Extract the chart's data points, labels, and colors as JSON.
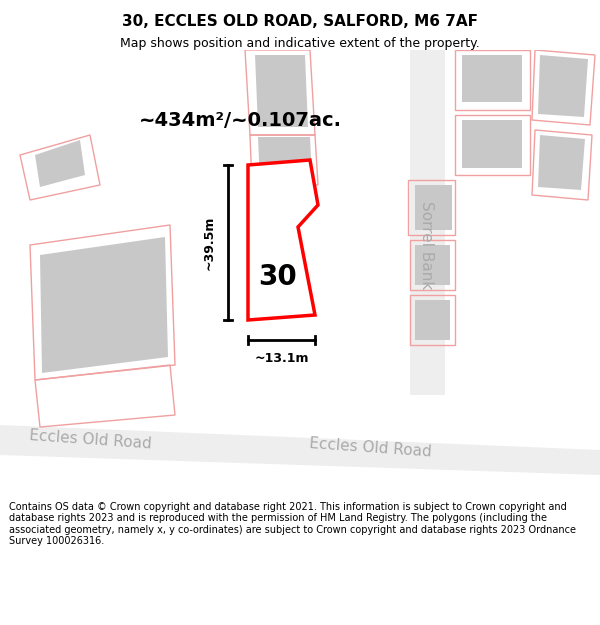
{
  "title": "30, ECCLES OLD ROAD, SALFORD, M6 7AF",
  "subtitle": "Map shows position and indicative extent of the property.",
  "footer": "Contains OS data © Crown copyright and database right 2021. This information is subject to Crown copyright and database rights 2023 and is reproduced with the permission of HM Land Registry. The polygons (including the associated geometry, namely x, y co-ordinates) are subject to Crown copyright and database rights 2023 Ordnance Survey 100026316.",
  "area_label": "~434m²/~0.107ac.",
  "width_label": "~13.1m",
  "height_label": "~39.5m",
  "plot_number": "30",
  "road_label_left": "Eccles Old Road",
  "road_label_right": "Eccles Old Road",
  "road_label_right2": "Sorrel Bank",
  "bg_color": "#ffffff",
  "map_bg": "#ffffff",
  "plot_color": "#ff0000",
  "plot_fill": "#ffffff",
  "building_color": "#cccccc",
  "road_color": "#e8e8e8",
  "outline_color": "#f5a0a0",
  "title_fontsize": 11,
  "subtitle_fontsize": 9,
  "footer_fontsize": 7
}
